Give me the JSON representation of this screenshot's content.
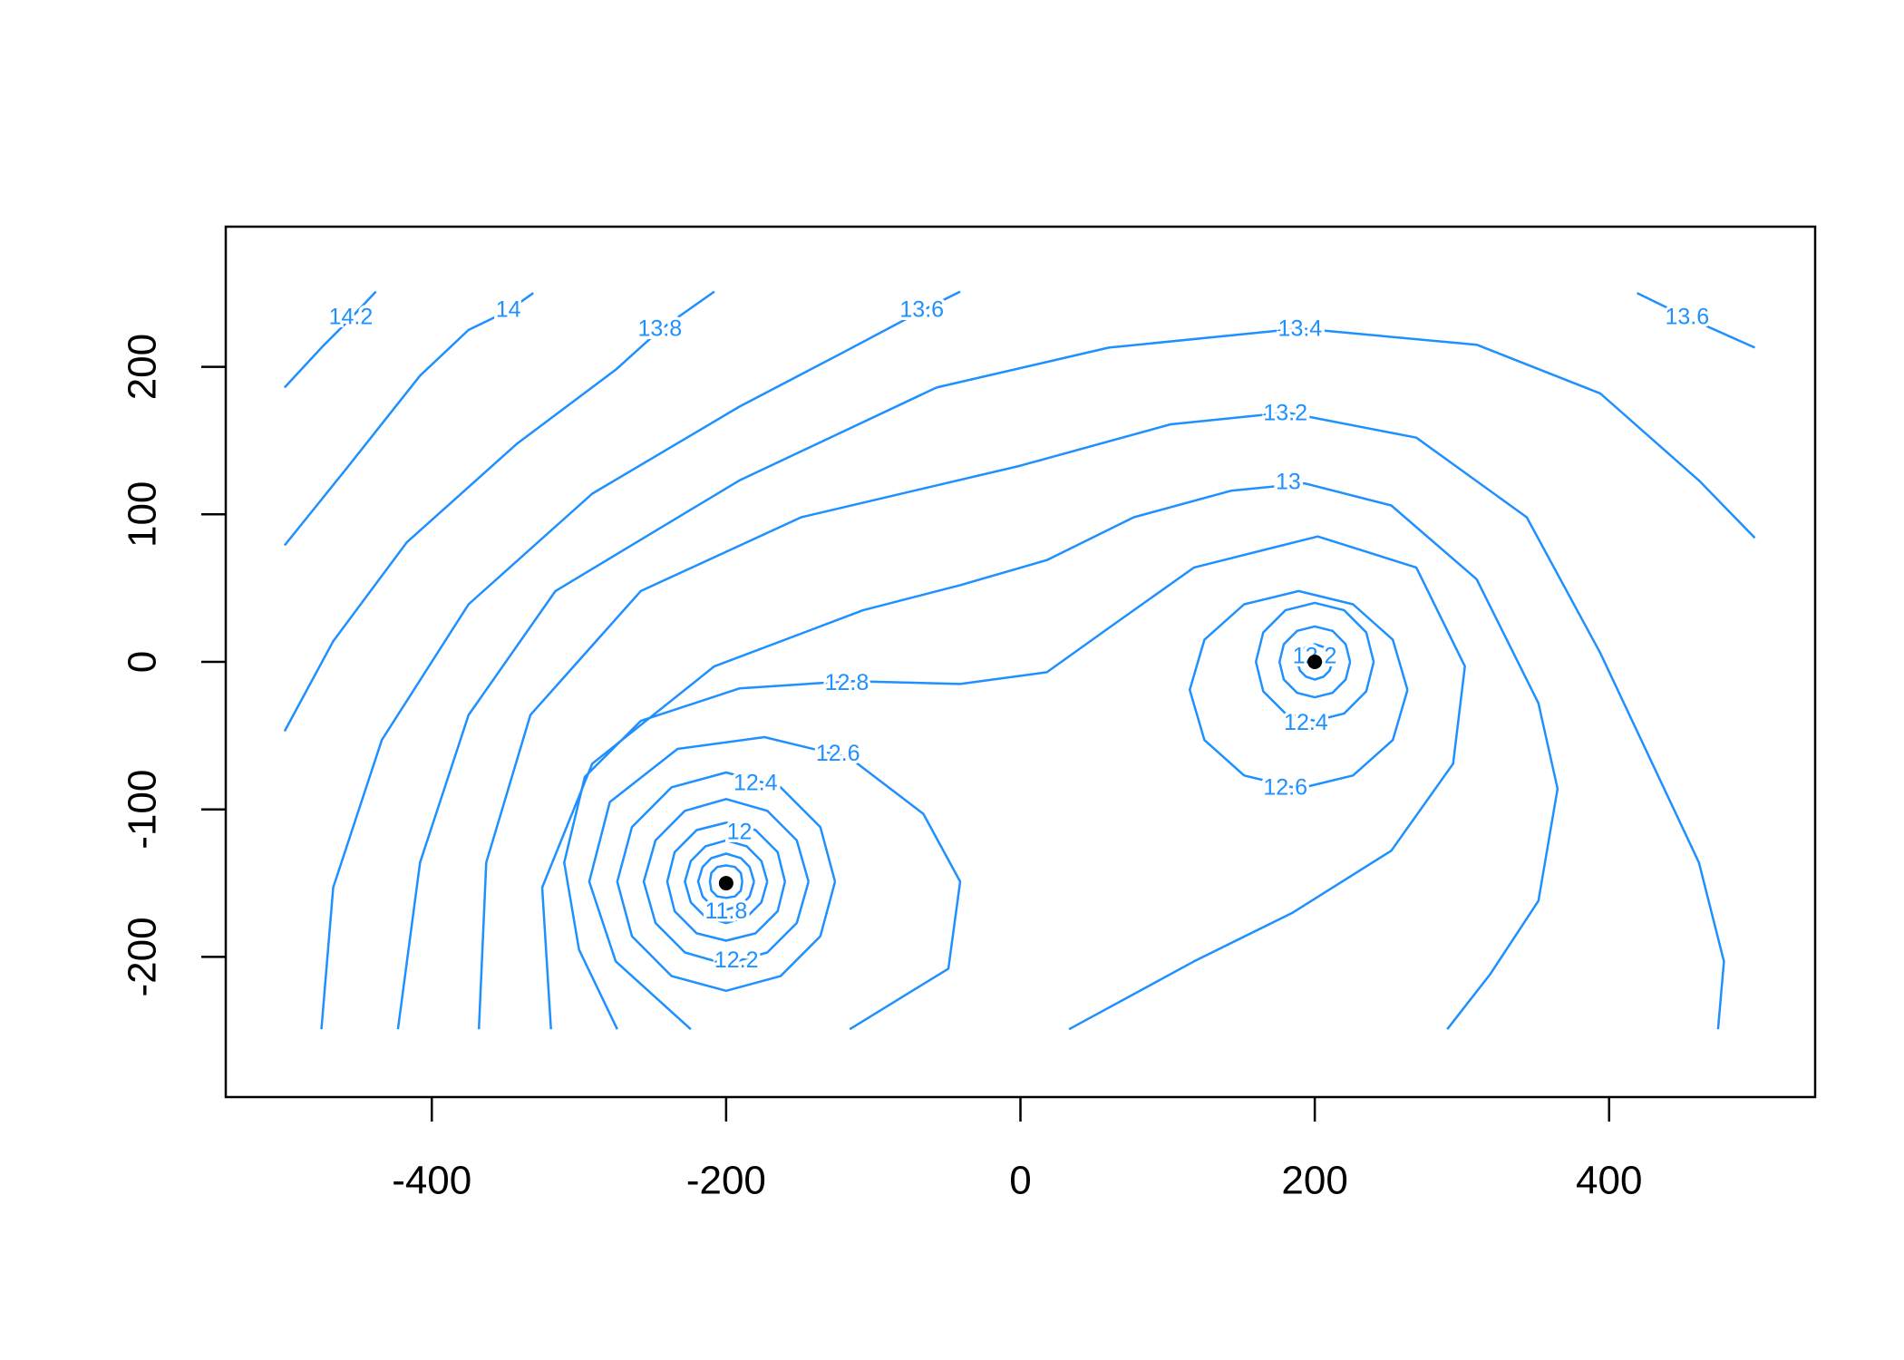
{
  "chart_data": {
    "type": "contour",
    "color": "#1e90ff",
    "xlim": [
      -540,
      540
    ],
    "ylim": [
      -295,
      295
    ],
    "xticks": [
      -400,
      -200,
      0,
      200,
      400
    ],
    "yticks": [
      -200,
      -100,
      0,
      100,
      200
    ],
    "contours": [
      {
        "x": [
          -500,
          -474,
          -455,
          -438
        ],
        "y": [
          186,
          214,
          233,
          251
        ]
      },
      {
        "x": [
          -500,
          -458,
          -408,
          -375,
          -348,
          -331
        ],
        "y": [
          79,
          131,
          194,
          225,
          238,
          250
        ]
      },
      {
        "x": [
          -500,
          -467,
          -417,
          -342,
          -275,
          -245,
          -208
        ],
        "y": [
          -47,
          14,
          81,
          148,
          198,
          225,
          251
        ]
      },
      {
        "x": [
          -475,
          -467,
          -434,
          -375,
          -291,
          -191,
          -120,
          -67,
          -41
        ],
        "y": [
          -249,
          -153,
          -53,
          39,
          114,
          173,
          210,
          238,
          251
        ]
      },
      {
        "x": [
          419,
          454,
          499
        ],
        "y": [
          250,
          233,
          213
        ]
      },
      {
        "x": [
          -423,
          -408,
          -375,
          -316,
          -191,
          -57,
          60,
          190,
          310,
          394,
          461,
          499
        ],
        "y": [
          -249,
          -136,
          -36,
          48,
          123,
          186,
          213,
          226,
          215,
          182,
          123,
          84
        ]
      },
      {
        "x": [
          -368,
          -363,
          -333,
          -258,
          -149,
          0,
          102,
          181,
          269,
          344,
          394,
          461,
          478,
          474
        ],
        "y": [
          -249,
          -136,
          -36,
          48,
          98,
          133,
          161,
          169,
          152,
          98,
          6,
          -136,
          -203,
          -249
        ]
      },
      {
        "x": [
          -319,
          -325,
          -291,
          -208,
          -107,
          -41,
          18,
          77,
          143,
          193,
          252,
          310,
          352,
          365,
          352,
          319,
          290
        ],
        "y": [
          -249,
          -153,
          -69,
          -3,
          35,
          52,
          69,
          98,
          116,
          121,
          106,
          56,
          -28,
          -86,
          -162,
          -212,
          -249
        ]
      },
      {
        "x": [
          -274,
          -300,
          -310,
          -296,
          -258,
          -191,
          -116,
          -41,
          18,
          60,
          118,
          202,
          269,
          302,
          294,
          252,
          185,
          118,
          33
        ],
        "y": [
          -249,
          -195,
          -136,
          -78,
          -40,
          -18,
          -13,
          -15,
          -7,
          23,
          64,
          85,
          64,
          -3,
          -69,
          -128,
          -170,
          -203,
          -249
        ]
      },
      {
        "x": [
          -224,
          -275,
          -293,
          -279,
          -233,
          -174,
          -116,
          -66,
          -41,
          -49,
          -116
        ],
        "y": [
          -249,
          -203,
          -149,
          -95,
          -59,
          -51,
          -65,
          -103,
          -149,
          -208,
          -249
        ]
      },
      {
        "x": [
          263,
          253,
          226,
          189,
          152,
          125,
          115,
          125,
          152,
          189,
          226,
          253,
          263
        ],
        "y": [
          -19,
          15,
          39,
          48,
          39,
          15,
          -19,
          -53,
          -77,
          -86,
          -77,
          -53,
          -19
        ]
      },
      {
        "x": [
          -126,
          -136,
          -163,
          -200,
          -237,
          -264,
          -274,
          -264,
          -237,
          -200,
          -163,
          -136,
          -126
        ],
        "y": [
          -149,
          -112,
          -85,
          -75,
          -85,
          -112,
          -149,
          -186,
          -213,
          -223,
          -213,
          -186,
          -149
        ]
      },
      {
        "x": [
          -144,
          -152,
          -172,
          -200,
          -228,
          -248,
          -256,
          -248,
          -228,
          -200,
          -172,
          -152,
          -144
        ],
        "y": [
          -149,
          -121,
          -101,
          -93,
          -101,
          -121,
          -149,
          -177,
          -197,
          -205,
          -197,
          -177,
          -149
        ]
      },
      {
        "x": [
          -160,
          -165,
          -180,
          -200,
          -220,
          -235,
          -240,
          -235,
          -220,
          -200,
          -180,
          -165,
          -160
        ],
        "y": [
          -149,
          -129,
          -114,
          -109,
          -114,
          -129,
          -149,
          -169,
          -184,
          -189,
          -184,
          -169,
          -149
        ]
      },
      {
        "x": [
          -172,
          -176,
          -186,
          -200,
          -214,
          -224,
          -228,
          -224,
          -214,
          -200,
          -186,
          -176,
          -172
        ],
        "y": [
          -149,
          -135,
          -125,
          -121,
          -125,
          -135,
          -149,
          -163,
          -173,
          -177,
          -173,
          -163,
          -149
        ]
      },
      {
        "x": [
          -181,
          -184,
          -190,
          -200,
          -210,
          -216,
          -219,
          -216,
          -210,
          -200,
          -190,
          -184,
          -181
        ],
        "y": [
          -149,
          -139,
          -133,
          -130,
          -133,
          -139,
          -149,
          -159,
          -165,
          -168,
          -165,
          -159,
          -149
        ]
      },
      {
        "x": [
          -189,
          -190,
          -194,
          -200,
          -206,
          -210,
          -211,
          -210,
          -206,
          -200,
          -194,
          -190,
          -189
        ],
        "y": [
          -149,
          -143,
          -139,
          -138,
          -139,
          -143,
          -149,
          -155,
          -159,
          -160,
          -159,
          -155,
          -149
        ]
      },
      {
        "x": [
          240,
          235,
          220,
          200,
          180,
          165,
          160,
          165,
          180,
          200,
          220,
          235,
          240
        ],
        "y": [
          0,
          20,
          35,
          40,
          35,
          20,
          0,
          -20,
          -35,
          -40,
          -35,
          -20,
          0
        ]
      },
      {
        "x": [
          224,
          221,
          212,
          200,
          188,
          179,
          176,
          179,
          188,
          200,
          212,
          221,
          224
        ],
        "y": [
          0,
          12,
          21,
          24,
          21,
          12,
          0,
          -12,
          -21,
          -24,
          -21,
          -12,
          0
        ]
      },
      {
        "x": [
          212,
          210,
          206,
          200,
          194,
          190,
          188,
          190,
          194,
          200,
          206,
          210,
          212
        ],
        "y": [
          0,
          6,
          10,
          12,
          10,
          6,
          0,
          -6,
          -10,
          -12,
          -10,
          -6,
          0
        ]
      }
    ],
    "labels": [
      {
        "text": "14.2",
        "x": -455,
        "y": 233
      },
      {
        "text": "14",
        "x": -348,
        "y": 238
      },
      {
        "text": "13.8",
        "x": -245,
        "y": 225
      },
      {
        "text": "13.6",
        "x": -67,
        "y": 238
      },
      {
        "text": "13.6",
        "x": 453,
        "y": 233
      },
      {
        "text": "13.4",
        "x": 190,
        "y": 225
      },
      {
        "text": "13.2",
        "x": 180,
        "y": 168
      },
      {
        "text": "13",
        "x": 182,
        "y": 121
      },
      {
        "text": "12.8",
        "x": -118,
        "y": -15
      },
      {
        "text": "12.6",
        "x": -124,
        "y": -63
      },
      {
        "text": "12.6",
        "x": 180,
        "y": -86
      },
      {
        "text": "12.4",
        "x": -180,
        "y": -83
      },
      {
        "text": "12.4",
        "x": 194,
        "y": -42
      },
      {
        "text": "12.2",
        "x": -193,
        "y": -203
      },
      {
        "text": "12",
        "x": -191,
        "y": -116
      },
      {
        "text": "11.8",
        "x": -200,
        "y": -170
      },
      {
        "text": "12.2",
        "x": 200,
        "y": 3
      }
    ],
    "points": {
      "color": "#000000",
      "x": [
        -200,
        200
      ],
      "y": [
        -150,
        0
      ]
    }
  }
}
